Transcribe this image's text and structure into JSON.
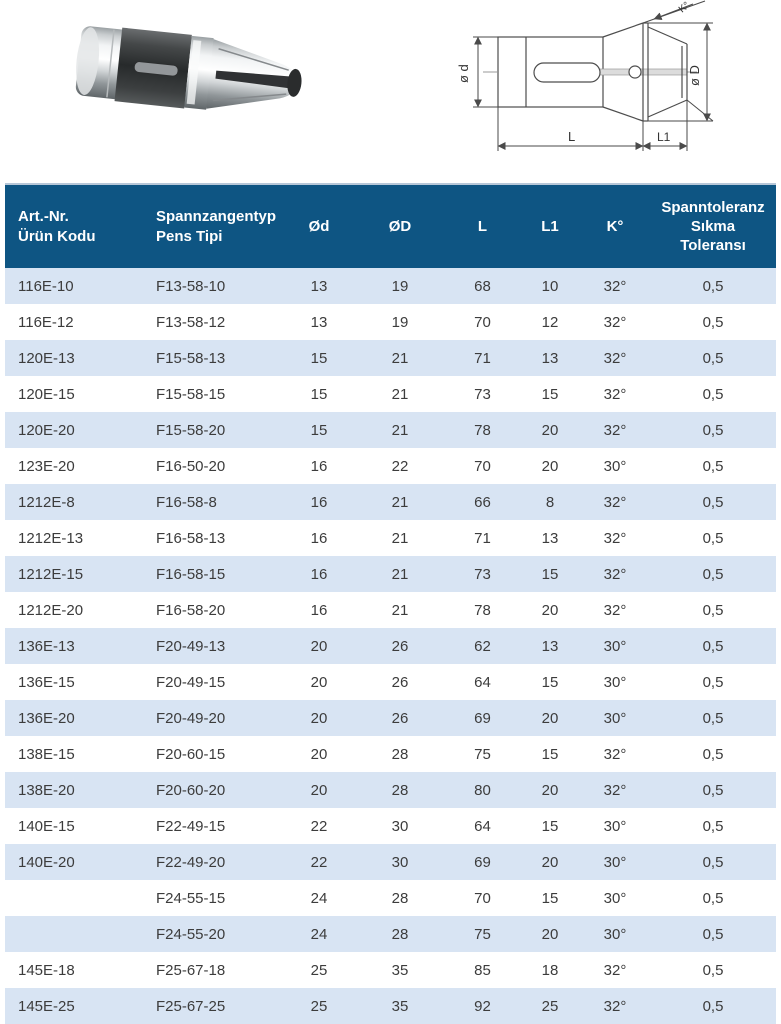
{
  "colors": {
    "header_bg": "#0e5583",
    "header_text": "#ffffff",
    "row_alt_bg": "#d8e4f3",
    "row_bg": "#ffffff",
    "body_text": "#3c3c3c"
  },
  "hero": {
    "drawing_labels": {
      "dim_d": "ø d",
      "dim_D": "ø D",
      "dim_L": "L",
      "dim_L1": "L1",
      "angle": "K°"
    }
  },
  "table": {
    "columns": [
      {
        "id": "art",
        "label": "Art.-Nr.\nÜrün Kodu",
        "align": "left"
      },
      {
        "id": "typ",
        "label": "Spannzangentyp\nPens Tipi",
        "align": "left"
      },
      {
        "id": "od",
        "label": "Ød",
        "align": "center"
      },
      {
        "id": "oD",
        "label": "ØD",
        "align": "center"
      },
      {
        "id": "l",
        "label": "L",
        "align": "center"
      },
      {
        "id": "l1",
        "label": "L1",
        "align": "center"
      },
      {
        "id": "k",
        "label": "K°",
        "align": "center"
      },
      {
        "id": "tol",
        "label": "Spanntoleranz\nSıkma\nToleransı",
        "align": "center"
      }
    ],
    "rows": [
      [
        "116E-10",
        "F13-58-10",
        "13",
        "19",
        "68",
        "10",
        "32°",
        "0,5"
      ],
      [
        "116E-12",
        "F13-58-12",
        "13",
        "19",
        "70",
        "12",
        "32°",
        "0,5"
      ],
      [
        "120E-13",
        "F15-58-13",
        "15",
        "21",
        "71",
        "13",
        "32°",
        "0,5"
      ],
      [
        "120E-15",
        "F15-58-15",
        "15",
        "21",
        "73",
        "15",
        "32°",
        "0,5"
      ],
      [
        "120E-20",
        "F15-58-20",
        "15",
        "21",
        "78",
        "20",
        "32°",
        "0,5"
      ],
      [
        "123E-20",
        "F16-50-20",
        "16",
        "22",
        "70",
        "20",
        "30°",
        "0,5"
      ],
      [
        "1212E-8",
        "F16-58-8",
        "16",
        "21",
        "66",
        "8",
        "32°",
        "0,5"
      ],
      [
        "1212E-13",
        "F16-58-13",
        "16",
        "21",
        "71",
        "13",
        "32°",
        "0,5"
      ],
      [
        "1212E-15",
        "F16-58-15",
        "16",
        "21",
        "73",
        "15",
        "32°",
        "0,5"
      ],
      [
        "1212E-20",
        "F16-58-20",
        "16",
        "21",
        "78",
        "20",
        "32°",
        "0,5"
      ],
      [
        "136E-13",
        "F20-49-13",
        "20",
        "26",
        "62",
        "13",
        "30°",
        "0,5"
      ],
      [
        "136E-15",
        "F20-49-15",
        "20",
        "26",
        "64",
        "15",
        "30°",
        "0,5"
      ],
      [
        "136E-20",
        "F20-49-20",
        "20",
        "26",
        "69",
        "20",
        "30°",
        "0,5"
      ],
      [
        "138E-15",
        "F20-60-15",
        "20",
        "28",
        "75",
        "15",
        "32°",
        "0,5"
      ],
      [
        "138E-20",
        "F20-60-20",
        "20",
        "28",
        "80",
        "20",
        "32°",
        "0,5"
      ],
      [
        "140E-15",
        "F22-49-15",
        "22",
        "30",
        "64",
        "15",
        "30°",
        "0,5"
      ],
      [
        "140E-20",
        "F22-49-20",
        "22",
        "30",
        "69",
        "20",
        "30°",
        "0,5"
      ],
      [
        "",
        "F24-55-15",
        "24",
        "28",
        "70",
        "15",
        "30°",
        "0,5"
      ],
      [
        "",
        "F24-55-20",
        "24",
        "28",
        "75",
        "20",
        "30°",
        "0,5"
      ],
      [
        "145E-18",
        "F25-67-18",
        "25",
        "35",
        "85",
        "18",
        "32°",
        "0,5"
      ],
      [
        "145E-25",
        "F25-67-25",
        "25",
        "35",
        "92",
        "25",
        "32°",
        "0,5"
      ]
    ]
  }
}
